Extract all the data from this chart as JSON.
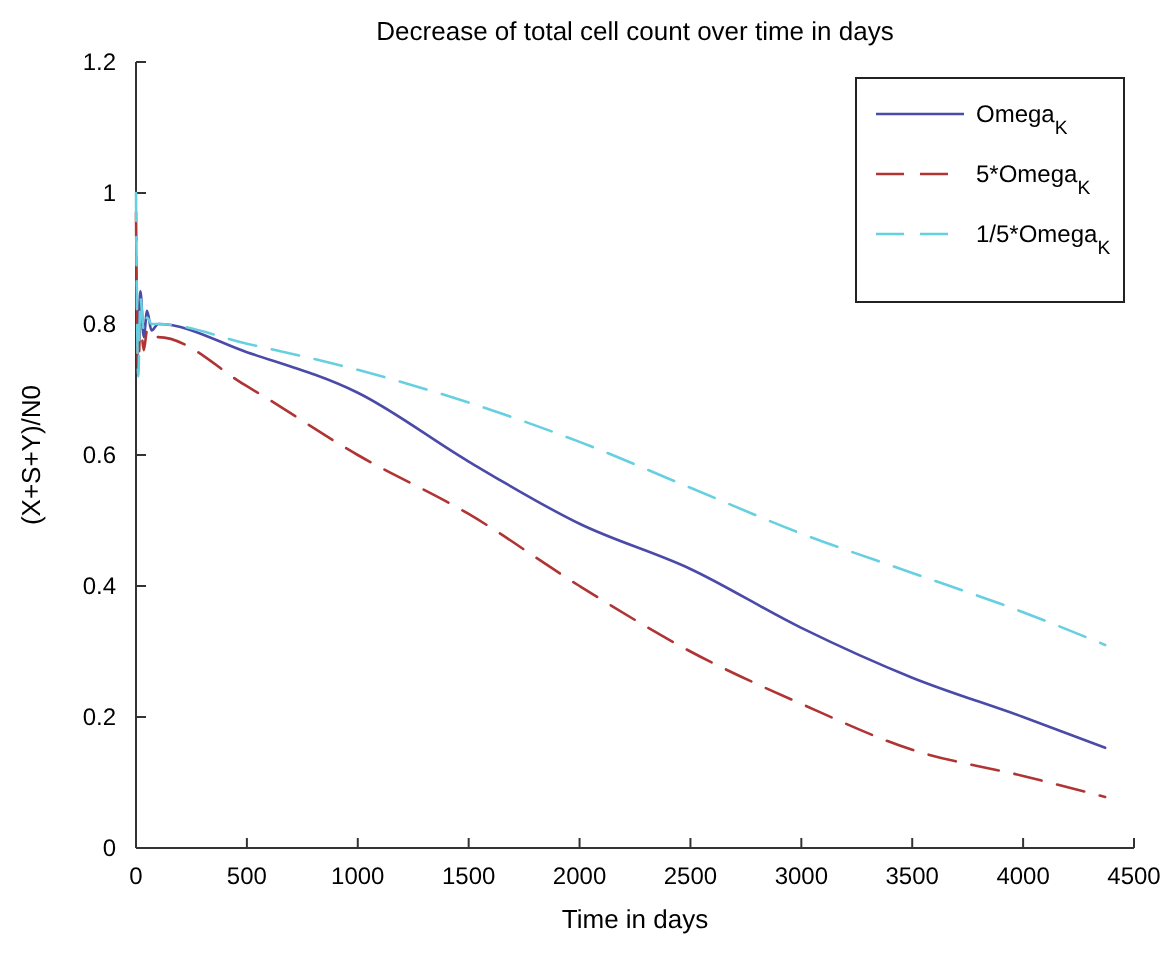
{
  "chart_data": {
    "type": "line",
    "title": "Decrease of total cell count over time in days",
    "xlabel": "Time in days",
    "ylabel": "(X+S+Y)/N0",
    "xlim": [
      0,
      4500
    ],
    "ylim": [
      0,
      1.2
    ],
    "xticks": [
      0,
      500,
      1000,
      1500,
      2000,
      2500,
      3000,
      3500,
      4000,
      4500
    ],
    "yticks": [
      0,
      0.2,
      0.4,
      0.6,
      0.8,
      1,
      1.2
    ],
    "grid": false,
    "legend": "top right",
    "marker": "none",
    "series": [
      {
        "name": "Omega$_{K}$",
        "color": "#4a4aa8",
        "line_style": "solid",
        "x": [
          10,
          20,
          35,
          50,
          70,
          100,
          500,
          1000,
          1500,
          2000,
          2500,
          3000,
          3500,
          4000,
          4370
        ],
        "values": [
          0.76,
          0.85,
          0.78,
          0.82,
          0.79,
          0.8,
          0.757,
          0.695,
          0.59,
          0.495,
          0.426,
          0.336,
          0.26,
          0.2,
          0.153
        ]
      },
      {
        "name": "5*Omega$_{K}$",
        "color": "#b03434",
        "line_style": "dashed",
        "x": [
          0,
          10,
          20,
          35,
          50,
          70,
          100,
          500,
          1000,
          1500,
          2000,
          2500,
          3000,
          3500,
          4000,
          4370
        ],
        "values": [
          0.97,
          0.73,
          0.8,
          0.76,
          0.79,
          0.78,
          0.78,
          0.705,
          0.6,
          0.51,
          0.4,
          0.3,
          0.22,
          0.15,
          0.11,
          0.078
        ]
      },
      {
        "name": "1/5*Omega$_{K}$",
        "color": "#66d0e0",
        "line_style": "dashed",
        "x": [
          0,
          10,
          20,
          35,
          50,
          70,
          100,
          500,
          1000,
          1500,
          2000,
          2500,
          3000,
          3500,
          4000,
          4370
        ],
        "values": [
          1.0,
          0.72,
          0.84,
          0.79,
          0.81,
          0.8,
          0.8,
          0.77,
          0.73,
          0.68,
          0.62,
          0.55,
          0.48,
          0.42,
          0.36,
          0.31
        ]
      }
    ]
  }
}
